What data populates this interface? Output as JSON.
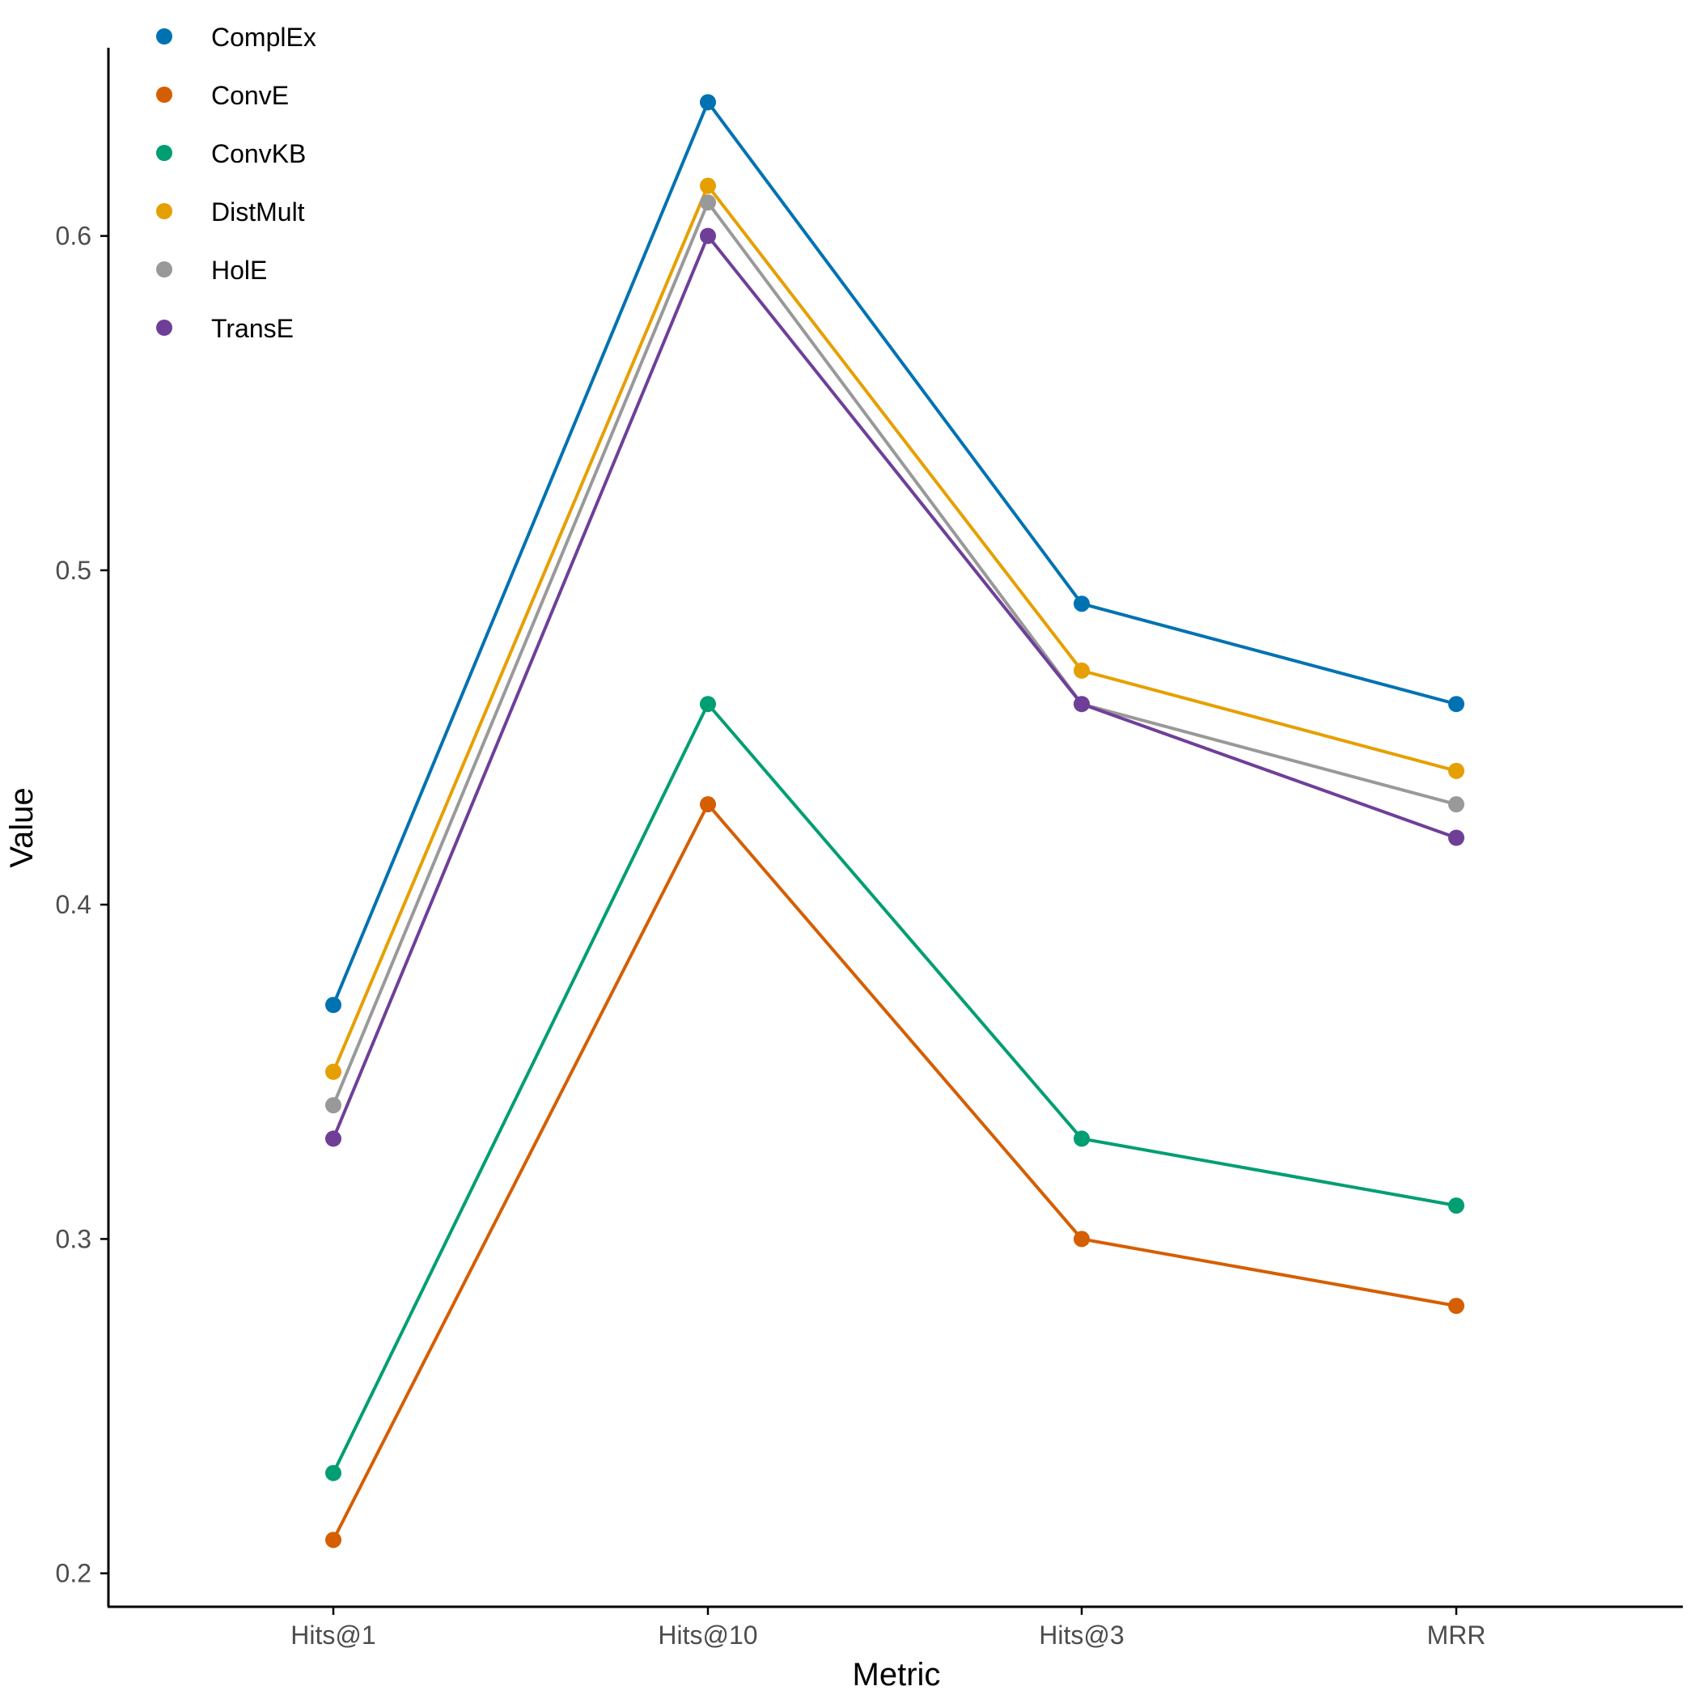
{
  "chart_data": {
    "type": "line",
    "title": "",
    "xlabel": "Metric",
    "ylabel": "Value",
    "categories": [
      "Hits@1",
      "Hits@10",
      "Hits@3",
      "MRR"
    ],
    "ylim": [
      0.19,
      0.65
    ],
    "yticks": [
      0.2,
      0.3,
      0.4,
      0.5,
      0.6
    ],
    "ytick_labels": [
      "0.2",
      "0.3",
      "0.4",
      "0.5",
      "0.6"
    ],
    "grid": false,
    "legend_position": "top-left",
    "series": [
      {
        "name": "ComplEx",
        "color": "#0072B2",
        "values": [
          0.37,
          0.64,
          0.49,
          0.46
        ]
      },
      {
        "name": "ConvE",
        "color": "#D55E00",
        "values": [
          0.21,
          0.43,
          0.3,
          0.28
        ]
      },
      {
        "name": "ConvKB",
        "color": "#009E73",
        "values": [
          0.23,
          0.46,
          0.33,
          0.31
        ]
      },
      {
        "name": "DistMult",
        "color": "#E69F00",
        "values": [
          0.35,
          0.615,
          0.47,
          0.44
        ]
      },
      {
        "name": "HolE",
        "color": "#999999",
        "values": [
          0.34,
          0.61,
          0.46,
          0.43
        ]
      },
      {
        "name": "TransE",
        "color": "#6F3F98",
        "values": [
          0.33,
          0.6,
          0.46,
          0.42
        ]
      }
    ]
  }
}
